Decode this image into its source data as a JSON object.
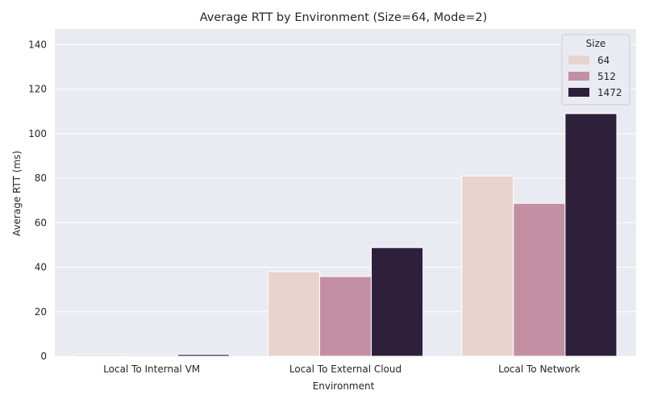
{
  "chart_data": {
    "type": "bar",
    "title": "Average RTT by Environment (Size=64, Mode=2)",
    "xlabel": "Environment",
    "ylabel": "Average RTT (ms)",
    "categories": [
      "Local To Internal VM",
      "Local To External Cloud",
      "Local To Network"
    ],
    "series": [
      {
        "name": "64",
        "values": [
          0.8,
          38.0,
          81.0
        ]
      },
      {
        "name": "512",
        "values": [
          0.5,
          35.8,
          68.7
        ]
      },
      {
        "name": "1472",
        "values": [
          0.8,
          48.8,
          109.0
        ]
      }
    ],
    "ylim": [
      0,
      147
    ],
    "yticks": [
      0,
      20,
      40,
      60,
      80,
      100,
      120,
      140
    ],
    "ytick_labels": [
      "0",
      "20",
      "40",
      "60",
      "80",
      "100",
      "120",
      "140"
    ],
    "grid": true,
    "legend": {
      "title": "Size",
      "placement": "top-right"
    },
    "colors": {
      "series": [
        "#e9d3cf",
        "#c390a3",
        "#2e1f3b"
      ],
      "plot_background": "#eaeaf2",
      "grid": "#ffffff",
      "bar_edge": "#ffffff"
    }
  }
}
